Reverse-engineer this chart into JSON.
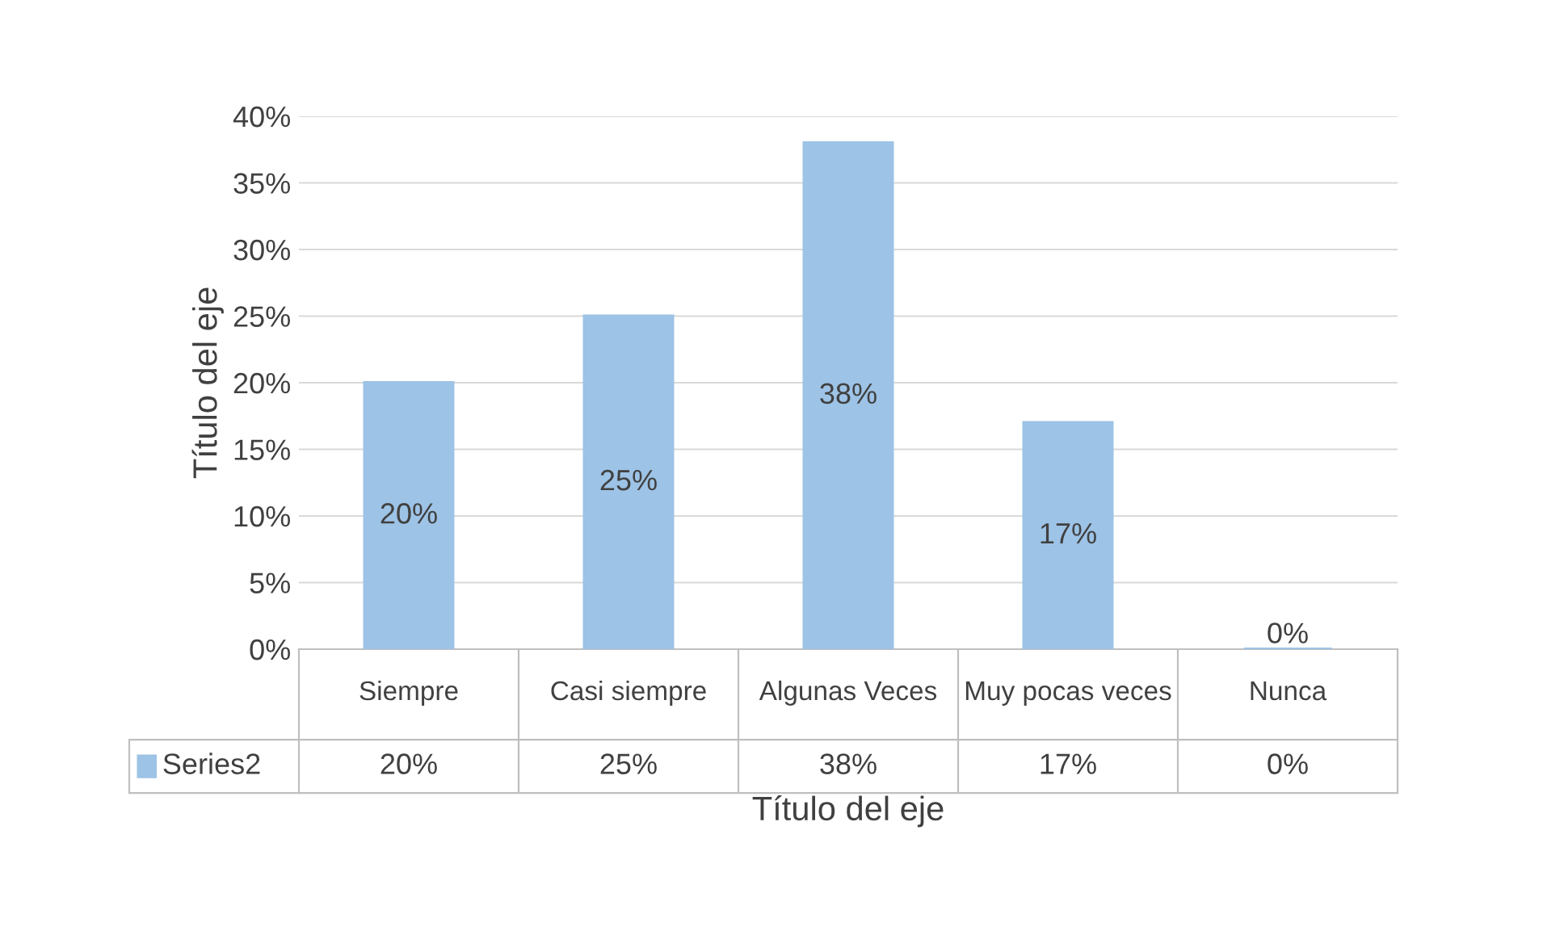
{
  "chart_data": {
    "type": "bar",
    "xlabel": "Título del eje",
    "ylabel": "Título del eje",
    "categories": [
      "Siempre",
      "Casi siempre",
      "Algunas Veces",
      "Muy pocas veces",
      "Nunca"
    ],
    "series": [
      {
        "name": "Series2",
        "color": "#9dc3e6",
        "values": [
          20,
          25,
          38,
          17,
          0
        ],
        "value_labels": [
          "20%",
          "25%",
          "38%",
          "17%",
          "0%"
        ]
      }
    ],
    "ylim": [
      0,
      40
    ],
    "yticks": [
      {
        "value": 0,
        "label": "0%"
      },
      {
        "value": 5,
        "label": "5%"
      },
      {
        "value": 10,
        "label": "10%"
      },
      {
        "value": 15,
        "label": "15%"
      },
      {
        "value": 20,
        "label": "20%"
      },
      {
        "value": 25,
        "label": "25%"
      },
      {
        "value": 30,
        "label": "30%"
      },
      {
        "value": 35,
        "label": "35%"
      },
      {
        "value": 40,
        "label": "40%"
      }
    ],
    "grid": "y",
    "legend": "bottom"
  }
}
